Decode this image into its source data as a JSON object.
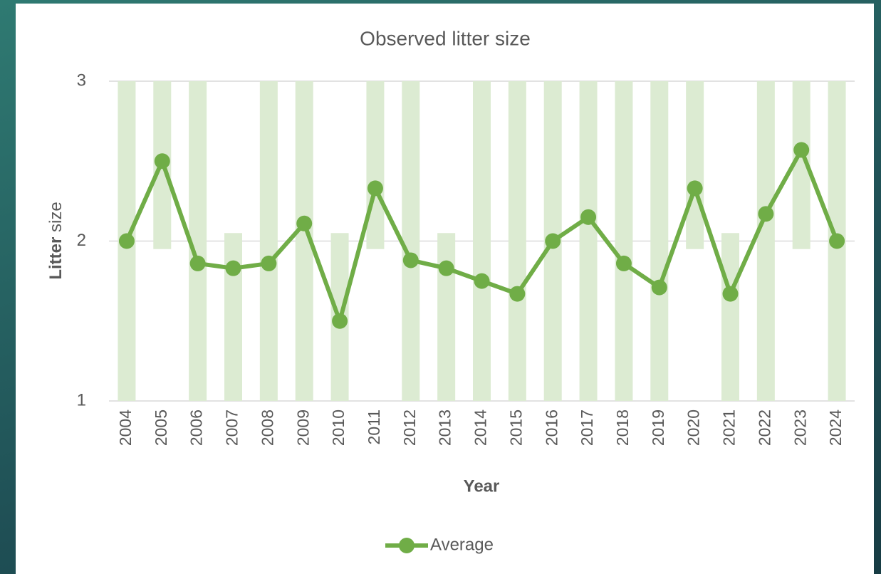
{
  "chart_data": {
    "type": "line",
    "title": "Observed litter size",
    "x_label": "Year",
    "y_label": [
      "Litter",
      "size"
    ],
    "categories": [
      "2004",
      "2005",
      "2006",
      "2007",
      "2008",
      "2009",
      "2010",
      "2011",
      "2012",
      "2013",
      "2014",
      "2015",
      "2016",
      "2017",
      "2018",
      "2019",
      "2020",
      "2021",
      "2022",
      "2023",
      "2024"
    ],
    "series": [
      {
        "name": "Average",
        "color": "#70ad47",
        "values": [
          2,
          2.5,
          1.86,
          1.83,
          1.86,
          2.11,
          1.5,
          2.33,
          1.88,
          1.83,
          1.75,
          1.67,
          2,
          2.15,
          1.86,
          1.71,
          2.33,
          1.67,
          2.17,
          2.57,
          2
        ]
      }
    ],
    "ranges": {
      "color": "#dcebd2",
      "low": [
        1,
        1.95,
        1,
        1,
        1,
        1,
        1,
        1.95,
        1,
        1,
        1,
        1,
        1,
        1,
        1,
        1,
        1.95,
        1,
        1,
        1.95,
        1
      ],
      "high": [
        3,
        3,
        3,
        2.05,
        3,
        3,
        2.05,
        3,
        3,
        2.05,
        3,
        3,
        3,
        3,
        3,
        3,
        3,
        2.05,
        3,
        3,
        3
      ]
    },
    "ylim": [
      1,
      3
    ],
    "yticks": [
      1,
      2,
      3
    ],
    "grid": true,
    "legend": "bottom"
  }
}
